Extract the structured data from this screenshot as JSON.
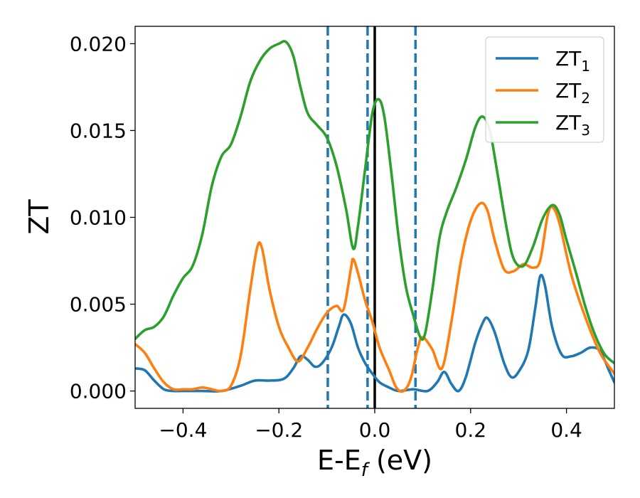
{
  "chart_data": {
    "type": "line",
    "xlabel_main": "E-E",
    "xlabel_sub": "f",
    "xlabel_rest": " (eV)",
    "ylabel": "ZT",
    "xlim": [
      -0.5,
      0.5
    ],
    "ylim": [
      -0.001,
      0.021
    ],
    "x_ticks": [
      -0.4,
      -0.2,
      0.0,
      0.2,
      0.4
    ],
    "x_tick_labels": [
      "−0.4",
      "−0.2",
      "0.0",
      "0.2",
      "0.4"
    ],
    "y_ticks": [
      0.0,
      0.005,
      0.01,
      0.015,
      0.02
    ],
    "y_tick_labels": [
      "0.000",
      "0.005",
      "0.010",
      "0.015",
      "0.020"
    ],
    "grid": false,
    "legend_position": "top-right",
    "vertical_lines": [
      {
        "x": -0.098,
        "style": "dashed",
        "color": "#1f77b4"
      },
      {
        "x": -0.015,
        "style": "dashed",
        "color": "#1f77b4"
      },
      {
        "x": 0.0,
        "style": "solid",
        "color": "#000000"
      },
      {
        "x": 0.085,
        "style": "dashed",
        "color": "#1f77b4"
      }
    ],
    "series": [
      {
        "name": "ZT",
        "subscript": "1",
        "color": "#1f77b4",
        "points": [
          [
            -0.5,
            0.0013
          ],
          [
            -0.48,
            0.0012
          ],
          [
            -0.46,
            0.0006
          ],
          [
            -0.44,
            0.0001
          ],
          [
            -0.42,
            0.0
          ],
          [
            -0.4,
            0.0
          ],
          [
            -0.36,
            0.0
          ],
          [
            -0.32,
            0.0
          ],
          [
            -0.28,
            0.0003
          ],
          [
            -0.25,
            0.0006
          ],
          [
            -0.22,
            0.0006
          ],
          [
            -0.19,
            0.0007
          ],
          [
            -0.17,
            0.0013
          ],
          [
            -0.155,
            0.002
          ],
          [
            -0.14,
            0.0018
          ],
          [
            -0.125,
            0.0014
          ],
          [
            -0.11,
            0.0016
          ],
          [
            -0.09,
            0.0025
          ],
          [
            -0.075,
            0.0037
          ],
          [
            -0.065,
            0.0044
          ],
          [
            -0.05,
            0.0039
          ],
          [
            -0.035,
            0.0025
          ],
          [
            -0.02,
            0.0016
          ],
          [
            -0.005,
            0.001
          ],
          [
            0.01,
            0.0005
          ],
          [
            0.03,
            0.0002
          ],
          [
            0.05,
            0.0
          ],
          [
            0.08,
            0.0001
          ],
          [
            0.11,
            0.0
          ],
          [
            0.13,
            0.0005
          ],
          [
            0.145,
            0.0011
          ],
          [
            0.16,
            0.0004
          ],
          [
            0.175,
            0.0
          ],
          [
            0.19,
            0.0008
          ],
          [
            0.21,
            0.0028
          ],
          [
            0.225,
            0.0039
          ],
          [
            0.235,
            0.0042
          ],
          [
            0.25,
            0.0034
          ],
          [
            0.27,
            0.0016
          ],
          [
            0.285,
            0.0008
          ],
          [
            0.3,
            0.0011
          ],
          [
            0.32,
            0.0023
          ],
          [
            0.335,
            0.0048
          ],
          [
            0.345,
            0.0066
          ],
          [
            0.355,
            0.0061
          ],
          [
            0.37,
            0.0037
          ],
          [
            0.39,
            0.0021
          ],
          [
            0.41,
            0.002
          ],
          [
            0.43,
            0.0022
          ],
          [
            0.45,
            0.0025
          ],
          [
            0.47,
            0.0023
          ],
          [
            0.49,
            0.0011
          ],
          [
            0.5,
            0.0005
          ]
        ]
      },
      {
        "name": "ZT",
        "subscript": "2",
        "color": "#ff7f0e",
        "points": [
          [
            -0.5,
            0.0027
          ],
          [
            -0.48,
            0.0022
          ],
          [
            -0.46,
            0.0013
          ],
          [
            -0.44,
            0.0005
          ],
          [
            -0.42,
            0.0001
          ],
          [
            -0.4,
            0.0001
          ],
          [
            -0.38,
            0.0001
          ],
          [
            -0.36,
            0.0002
          ],
          [
            -0.34,
            0.0001
          ],
          [
            -0.32,
            0.0
          ],
          [
            -0.3,
            0.0003
          ],
          [
            -0.28,
            0.002
          ],
          [
            -0.26,
            0.0058
          ],
          [
            -0.245,
            0.0083
          ],
          [
            -0.235,
            0.0082
          ],
          [
            -0.22,
            0.0059
          ],
          [
            -0.2,
            0.0037
          ],
          [
            -0.18,
            0.0025
          ],
          [
            -0.16,
            0.0017
          ],
          [
            -0.14,
            0.0025
          ],
          [
            -0.12,
            0.0036
          ],
          [
            -0.1,
            0.0045
          ],
          [
            -0.08,
            0.0049
          ],
          [
            -0.065,
            0.0047
          ],
          [
            -0.05,
            0.007
          ],
          [
            -0.045,
            0.0076
          ],
          [
            -0.035,
            0.0068
          ],
          [
            -0.02,
            0.0052
          ],
          [
            -0.005,
            0.004
          ],
          [
            0.01,
            0.0025
          ],
          [
            0.03,
            0.0012
          ],
          [
            0.045,
            0.0002
          ],
          [
            0.06,
            0.0
          ],
          [
            0.075,
            0.0007
          ],
          [
            0.09,
            0.0025
          ],
          [
            0.1,
            0.0031
          ],
          [
            0.12,
            0.0024
          ],
          [
            0.14,
            0.0013
          ],
          [
            0.16,
            0.004
          ],
          [
            0.18,
            0.0075
          ],
          [
            0.2,
            0.0098
          ],
          [
            0.22,
            0.0108
          ],
          [
            0.235,
            0.0104
          ],
          [
            0.25,
            0.0087
          ],
          [
            0.27,
            0.007
          ],
          [
            0.29,
            0.0069
          ],
          [
            0.31,
            0.0073
          ],
          [
            0.33,
            0.0071
          ],
          [
            0.345,
            0.0075
          ],
          [
            0.36,
            0.01
          ],
          [
            0.37,
            0.0106
          ],
          [
            0.385,
            0.0097
          ],
          [
            0.41,
            0.0067
          ],
          [
            0.44,
            0.0042
          ],
          [
            0.47,
            0.0022
          ],
          [
            0.5,
            0.001
          ]
        ]
      },
      {
        "name": "ZT",
        "subscript": "3",
        "color": "#2ca02c",
        "points": [
          [
            -0.5,
            0.003
          ],
          [
            -0.48,
            0.0035
          ],
          [
            -0.46,
            0.0037
          ],
          [
            -0.44,
            0.0043
          ],
          [
            -0.42,
            0.0055
          ],
          [
            -0.4,
            0.0065
          ],
          [
            -0.38,
            0.0072
          ],
          [
            -0.36,
            0.009
          ],
          [
            -0.34,
            0.0118
          ],
          [
            -0.32,
            0.0135
          ],
          [
            -0.3,
            0.0142
          ],
          [
            -0.28,
            0.0158
          ],
          [
            -0.26,
            0.0178
          ],
          [
            -0.24,
            0.019
          ],
          [
            -0.22,
            0.0197
          ],
          [
            -0.2,
            0.02
          ],
          [
            -0.185,
            0.0201
          ],
          [
            -0.17,
            0.0193
          ],
          [
            -0.155,
            0.0175
          ],
          [
            -0.14,
            0.016
          ],
          [
            -0.12,
            0.0153
          ],
          [
            -0.1,
            0.0146
          ],
          [
            -0.08,
            0.013
          ],
          [
            -0.06,
            0.0105
          ],
          [
            -0.045,
            0.0082
          ],
          [
            -0.035,
            0.0095
          ],
          [
            -0.02,
            0.0128
          ],
          [
            -0.005,
            0.016
          ],
          [
            0.008,
            0.0168
          ],
          [
            0.02,
            0.0158
          ],
          [
            0.035,
            0.0125
          ],
          [
            0.05,
            0.0088
          ],
          [
            0.065,
            0.006
          ],
          [
            0.08,
            0.0044
          ],
          [
            0.095,
            0.0031
          ],
          [
            0.105,
            0.0033
          ],
          [
            0.12,
            0.0058
          ],
          [
            0.135,
            0.0088
          ],
          [
            0.15,
            0.0103
          ],
          [
            0.17,
            0.0117
          ],
          [
            0.19,
            0.0133
          ],
          [
            0.21,
            0.0152
          ],
          [
            0.225,
            0.0158
          ],
          [
            0.24,
            0.015
          ],
          [
            0.255,
            0.0127
          ],
          [
            0.275,
            0.0094
          ],
          [
            0.29,
            0.0076
          ],
          [
            0.31,
            0.0072
          ],
          [
            0.33,
            0.0083
          ],
          [
            0.35,
            0.0099
          ],
          [
            0.37,
            0.0107
          ],
          [
            0.385,
            0.0102
          ],
          [
            0.4,
            0.0087
          ],
          [
            0.42,
            0.0068
          ],
          [
            0.44,
            0.0048
          ],
          [
            0.46,
            0.0032
          ],
          [
            0.48,
            0.0021
          ],
          [
            0.5,
            0.0016
          ]
        ]
      }
    ]
  }
}
